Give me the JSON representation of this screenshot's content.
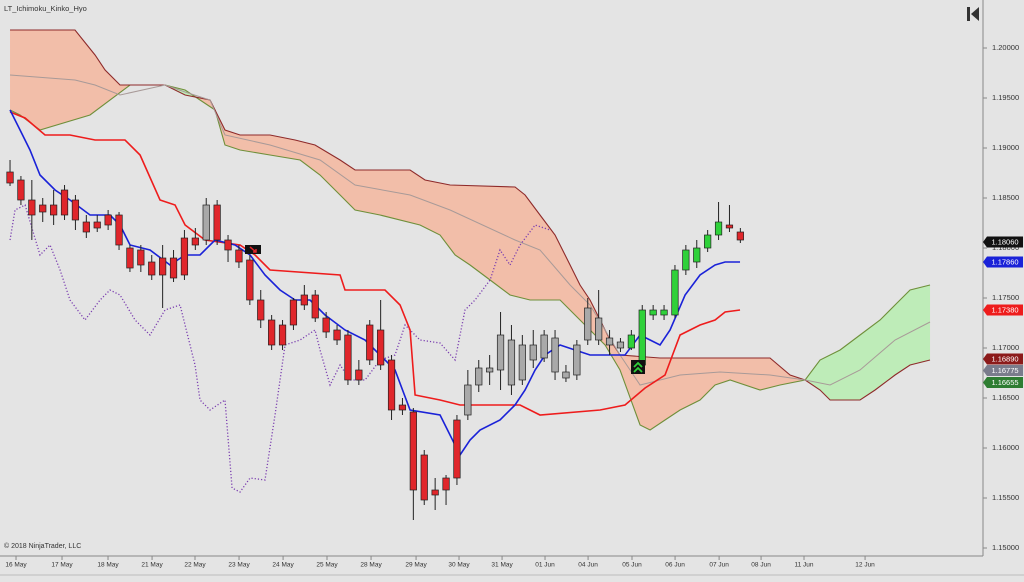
{
  "chart_data": {
    "type": "candlestick",
    "title": "LT_Ichimoku_Kinko_Hyo",
    "footnote": "© 2018 NinjaTrader, LLC",
    "xlim": [
      -0.92,
      89.26
    ],
    "ylim": [
      1.1492,
      1.2048
    ],
    "yticks": [
      {
        "value": 1.2,
        "label": "1.20000"
      },
      {
        "value": 1.195,
        "label": "1.19500"
      },
      {
        "value": 1.19,
        "label": "1.19000"
      },
      {
        "value": 1.185,
        "label": "1.18500"
      },
      {
        "value": 1.18,
        "label": "1.18000"
      },
      {
        "value": 1.175,
        "label": "1.17500"
      },
      {
        "value": 1.17,
        "label": "1.17000"
      },
      {
        "value": 1.165,
        "label": "1.16500"
      },
      {
        "value": 1.16,
        "label": "1.16000"
      },
      {
        "value": 1.155,
        "label": "1.15500"
      },
      {
        "value": 1.15,
        "label": "1.15000"
      }
    ],
    "xticks": [
      {
        "value": 0.55,
        "label": "16 May"
      },
      {
        "value": 4.77,
        "label": "17 May"
      },
      {
        "value": 8.99,
        "label": "18 May"
      },
      {
        "value": 13.03,
        "label": "21 May"
      },
      {
        "value": 16.97,
        "label": "22 May"
      },
      {
        "value": 21.01,
        "label": "23 May"
      },
      {
        "value": 25.05,
        "label": "24 May"
      },
      {
        "value": 29.08,
        "label": "25 May"
      },
      {
        "value": 33.12,
        "label": "28 May"
      },
      {
        "value": 37.25,
        "label": "29 May"
      },
      {
        "value": 41.19,
        "label": "30 May"
      },
      {
        "value": 45.14,
        "label": "31 May"
      },
      {
        "value": 49.08,
        "label": "01 Jun"
      },
      {
        "value": 53.03,
        "label": "04 Jun"
      },
      {
        "value": 57.06,
        "label": "05 Jun"
      },
      {
        "value": 61.01,
        "label": "06 Jun"
      },
      {
        "value": 65.05,
        "label": "07 Jun"
      },
      {
        "value": 68.9,
        "label": "08 Jun"
      },
      {
        "value": 72.84,
        "label": "11 Jun"
      },
      {
        "value": 78.44,
        "label": "12 Jun"
      }
    ],
    "candles": {
      "x": [
        0,
        1,
        2,
        3,
        4,
        5,
        6,
        7,
        8,
        9,
        10,
        11,
        12,
        13,
        14,
        15,
        16,
        17,
        18,
        19,
        20,
        21,
        22,
        23,
        24,
        25,
        26,
        27,
        28,
        29,
        30,
        31,
        32,
        33,
        34,
        35,
        36,
        37,
        38,
        39,
        40,
        41,
        42,
        43,
        44,
        45,
        46,
        47,
        48,
        49,
        50,
        51,
        52,
        53,
        54,
        55,
        56,
        57,
        58,
        59,
        60,
        61,
        62,
        63,
        64,
        65,
        66,
        67
      ],
      "open": [
        1.1876,
        1.1868,
        1.1848,
        1.1836,
        1.1843,
        1.1858,
        1.1848,
        1.1826,
        1.182,
        1.1833,
        1.1833,
        1.18,
        1.1798,
        1.1786,
        1.1773,
        1.179,
        1.1773,
        1.181,
        1.1808,
        1.1843,
        1.1808,
        1.1798,
        1.1788,
        1.1748,
        1.1728,
        1.1703,
        1.1723,
        1.1743,
        1.1753,
        1.173,
        1.1718,
        1.1713,
        1.1678,
        1.1688,
        1.1718,
        1.1688,
        1.1643,
        1.1636,
        1.1593,
        1.1553,
        1.1558,
        1.157,
        1.1633,
        1.1663,
        1.1676,
        1.1678,
        1.1708,
        1.1668,
        1.1703,
        1.169,
        1.171,
        1.1676,
        1.1673,
        1.1708,
        1.173,
        1.171,
        1.1706,
        1.17,
        1.1683,
        1.1738,
        1.1733,
        1.1733,
        1.1778,
        1.1786,
        1.18,
        1.1813,
        1.1823,
        1.1816
      ],
      "high": [
        1.1888,
        1.1872,
        1.1868,
        1.185,
        1.1858,
        1.1863,
        1.1853,
        1.1833,
        1.1833,
        1.1838,
        1.1836,
        1.1803,
        1.1803,
        1.1793,
        1.1803,
        1.1798,
        1.1818,
        1.182,
        1.185,
        1.1848,
        1.1813,
        1.1803,
        1.1793,
        1.1758,
        1.1733,
        1.1728,
        1.175,
        1.1763,
        1.1758,
        1.1736,
        1.1723,
        1.1718,
        1.1688,
        1.1728,
        1.1748,
        1.1693,
        1.165,
        1.164,
        1.1598,
        1.157,
        1.1573,
        1.1633,
        1.1678,
        1.1688,
        1.1693,
        1.1736,
        1.1723,
        1.1713,
        1.1718,
        1.1718,
        1.1718,
        1.1683,
        1.1708,
        1.175,
        1.1758,
        1.1718,
        1.171,
        1.1718,
        1.1743,
        1.1743,
        1.1743,
        1.1783,
        1.1803,
        1.1808,
        1.1818,
        1.1846,
        1.1843,
        1.182
      ],
      "low": [
        1.1862,
        1.1843,
        1.1808,
        1.1826,
        1.1823,
        1.1828,
        1.1818,
        1.181,
        1.1816,
        1.1818,
        1.1798,
        1.1776,
        1.1776,
        1.1768,
        1.174,
        1.1766,
        1.1768,
        1.1798,
        1.1803,
        1.1803,
        1.1786,
        1.178,
        1.1743,
        1.172,
        1.1698,
        1.1698,
        1.1718,
        1.1738,
        1.1726,
        1.171,
        1.1703,
        1.1663,
        1.1663,
        1.1683,
        1.1678,
        1.1628,
        1.1633,
        1.1528,
        1.1543,
        1.1538,
        1.1543,
        1.1563,
        1.1628,
        1.1656,
        1.1663,
        1.1658,
        1.1653,
        1.1663,
        1.168,
        1.1686,
        1.1668,
        1.1666,
        1.1668,
        1.1703,
        1.1703,
        1.1693,
        1.1696,
        1.1698,
        1.1678,
        1.1728,
        1.1728,
        1.173,
        1.1773,
        1.178,
        1.1796,
        1.1808,
        1.1816,
        1.1805
      ],
      "close": [
        1.1865,
        1.1848,
        1.1833,
        1.1843,
        1.1833,
        1.1833,
        1.1828,
        1.1816,
        1.1826,
        1.1823,
        1.1803,
        1.178,
        1.1783,
        1.1773,
        1.179,
        1.177,
        1.181,
        1.1803,
        1.1843,
        1.1808,
        1.1798,
        1.1786,
        1.1748,
        1.1728,
        1.1703,
        1.1723,
        1.1748,
        1.1753,
        1.173,
        1.1716,
        1.1708,
        1.1668,
        1.1668,
        1.1723,
        1.1683,
        1.1638,
        1.1638,
        1.1558,
        1.1548,
        1.1558,
        1.157,
        1.1628,
        1.1663,
        1.168,
        1.168,
        1.1713,
        1.1663,
        1.1703,
        1.1688,
        1.1713,
        1.1676,
        1.167,
        1.1703,
        1.174,
        1.1708,
        1.1703,
        1.17,
        1.1713,
        1.1738,
        1.1733,
        1.1738,
        1.1778,
        1.1798,
        1.18,
        1.1813,
        1.1826,
        1.182,
        1.1808
      ],
      "colors": [
        "#e0262b",
        "#e0262b",
        "#e0262b",
        "#e0262b",
        "#e0262b",
        "#e0262b",
        "#e0262b",
        "#e0262b",
        "#e0262b",
        "#e0262b",
        "#e0262b",
        "#e0262b",
        "#e0262b",
        "#e0262b",
        "#e0262b",
        "#e0262b",
        "#e0262b",
        "#e0262b",
        "#a9a9a9",
        "#e0262b",
        "#e0262b",
        "#e0262b",
        "#e0262b",
        "#e0262b",
        "#e0262b",
        "#e0262b",
        "#e0262b",
        "#e0262b",
        "#e0262b",
        "#e0262b",
        "#e0262b",
        "#e0262b",
        "#e0262b",
        "#e0262b",
        "#e0262b",
        "#e0262b",
        "#e0262b",
        "#e0262b",
        "#e0262b",
        "#e0262b",
        "#e0262b",
        "#e0262b",
        "#a9a9a9",
        "#a9a9a9",
        "#a9a9a9",
        "#a9a9a9",
        "#a9a9a9",
        "#a9a9a9",
        "#a9a9a9",
        "#a9a9a9",
        "#a9a9a9",
        "#a9a9a9",
        "#a9a9a9",
        "#a9a9a9",
        "#a9a9a9",
        "#a9a9a9",
        "#a9a9a9",
        "#2fd13a",
        "#2fd13a",
        "#2fd13a",
        "#2fd13a",
        "#2fd13a",
        "#2fd13a",
        "#2fd13a",
        "#2fd13a",
        "#2fd13a",
        "#e0262b",
        "#e0262b"
      ]
    },
    "cloud": {
      "bearish_color": "#f3b9a2",
      "bullish_color": "#b9ecb3",
      "a": {
        "color": "#6f8f3a",
        "x": [
          0,
          0.92,
          2.75,
          7.34,
          11.01,
          14.22,
          16.06,
          17.43,
          18.81,
          19.72,
          21.1,
          23.85,
          26.61,
          28.44,
          30.28,
          31.65,
          33.94,
          37.61,
          39.45,
          40.83,
          42.2,
          44.04,
          45.87,
          47.71,
          50.46,
          51.83,
          53.21,
          54.59,
          55.96,
          57.8,
          58.72,
          60.09,
          61.47,
          63.3,
          64.68,
          66.06,
          68.81,
          70.64,
          72.94,
          74.31,
          76.15,
          77.98,
          79.82,
          81.19,
          82.57,
          84.4
        ],
        "values": [
          1.1938,
          1.1933,
          1.1918,
          1.1933,
          1.1963,
          1.1963,
          1.1958,
          1.1948,
          1.1938,
          1.1903,
          1.1898,
          1.1893,
          1.1888,
          1.1873,
          1.1853,
          1.1838,
          1.1833,
          1.1823,
          1.1813,
          1.1793,
          1.1783,
          1.1768,
          1.1753,
          1.1748,
          1.1748,
          1.1733,
          1.1718,
          1.1703,
          1.1678,
          1.1623,
          1.1618,
          1.1628,
          1.1638,
          1.1648,
          1.1663,
          1.1668,
          1.1658,
          1.1663,
          1.1668,
          1.1688,
          1.1698,
          1.1713,
          1.1728,
          1.1743,
          1.1758,
          1.1763
        ]
      },
      "b": {
        "color": "#8e2a2a",
        "x": [
          0,
          5.96,
          7.8,
          8.72,
          10.09,
          14.22,
          16.06,
          18.35,
          19.72,
          21.1,
          23.85,
          26.15,
          27.98,
          30.28,
          31.65,
          36.7,
          38.07,
          40.37,
          46.33,
          47.25,
          48.62,
          50,
          51.38,
          52.29,
          53.21,
          55.05,
          55.96,
          59.63,
          69.72,
          71.56,
          72.94,
          74.31,
          75.23,
          77.98,
          79.36,
          81.19,
          82.57,
          84.4
        ],
        "values": [
          1.2018,
          1.2018,
          1.1993,
          1.1978,
          1.1963,
          1.1963,
          1.1953,
          1.1948,
          1.1918,
          1.1913,
          1.1913,
          1.1908,
          1.1903,
          1.1888,
          1.1878,
          1.1878,
          1.1868,
          1.1863,
          1.1861,
          1.1853,
          1.1833,
          1.1813,
          1.1783,
          1.1763,
          1.1748,
          1.1708,
          1.1693,
          1.169,
          1.169,
          1.1673,
          1.1668,
          1.1658,
          1.1648,
          1.1648,
          1.1658,
          1.1673,
          1.1683,
          1.1688
        ]
      }
    },
    "lines": [
      {
        "color": "#a89a98",
        "width": 1,
        "dash": false,
        "x": [
          0,
          5.96,
          7.8,
          10.09,
          14.22,
          16.06,
          18.35,
          19.72,
          23.85,
          28.44,
          31.65,
          36.7,
          40.37,
          46.33,
          48.62,
          51.38,
          53.21,
          55.96,
          57.8,
          61.47,
          65.14,
          69.72,
          72.94,
          75.23,
          77.98,
          81.19,
          84.4
        ],
        "values": [
          1.1973,
          1.1968,
          1.1963,
          1.1953,
          1.1963,
          1.1956,
          1.1948,
          1.1913,
          1.1903,
          1.1888,
          1.1863,
          1.1853,
          1.1838,
          1.1808,
          1.1798,
          1.1763,
          1.1743,
          1.1693,
          1.1663,
          1.1673,
          1.1676,
          1.1673,
          1.1668,
          1.1663,
          1.1678,
          1.1708,
          1.1726
        ]
      },
      {
        "color": "#7b3fb0",
        "width": 1.3,
        "dash": true,
        "x": [
          0,
          0.46,
          1.38,
          2.75,
          3.67,
          4.59,
          5.5,
          6.88,
          8.26,
          9.17,
          10.09,
          11.47,
          12.84,
          14.22,
          15.6,
          16.97,
          17.43,
          18.35,
          19.72,
          20.37,
          21.1,
          22.02,
          23.39,
          24.31,
          25.23,
          26.61,
          27.98,
          28.44,
          29.36,
          30.28,
          31.19,
          32.57,
          33.94,
          35.32,
          36.24,
          37.61,
          39.45,
          40.83,
          41.74,
          42.66,
          44.04,
          44.95,
          45.87,
          46.79,
          48.17,
          49.54
        ],
        "values": [
          1.1808,
          1.1838,
          1.1843,
          1.1793,
          1.1803,
          1.1778,
          1.1748,
          1.1728,
          1.1748,
          1.1758,
          1.1753,
          1.1728,
          1.1713,
          1.1738,
          1.1743,
          1.1683,
          1.1648,
          1.1638,
          1.1648,
          1.156,
          1.1556,
          1.157,
          1.1568,
          1.1633,
          1.1703,
          1.1708,
          1.1718,
          1.1698,
          1.1663,
          1.1683,
          1.1668,
          1.1668,
          1.1688,
          1.1693,
          1.1723,
          1.1708,
          1.1705,
          1.1688,
          1.1738,
          1.1748,
          1.1768,
          1.1798,
          1.1783,
          1.1803,
          1.1823,
          1.1818
        ]
      },
      {
        "color": "#ee1c1c",
        "width": 1.6,
        "dash": false,
        "x": [
          0,
          1.38,
          3.21,
          5.5,
          7.8,
          10.55,
          11.93,
          13.76,
          15.14,
          16.06,
          17.89,
          21.1,
          22.48,
          23.85,
          30.28,
          30.73,
          34.4,
          35.78,
          36.7,
          37.16,
          39.45,
          41.28,
          46.79,
          48.62,
          54.13,
          56.42,
          58.26,
          60.09,
          61.47,
          63.3,
          64.68,
          65.6,
          66.97
        ],
        "values": [
          1.1936,
          1.193,
          1.1913,
          1.1913,
          1.1908,
          1.1908,
          1.1893,
          1.1848,
          1.1843,
          1.1823,
          1.1808,
          1.1803,
          1.1793,
          1.1778,
          1.1773,
          1.1758,
          1.1758,
          1.1743,
          1.1718,
          1.1653,
          1.1648,
          1.1643,
          1.1643,
          1.1633,
          1.1638,
          1.1643,
          1.166,
          1.1673,
          1.1713,
          1.1723,
          1.1728,
          1.1736,
          1.1738
        ]
      },
      {
        "color": "#1a22d8",
        "width": 1.6,
        "dash": false,
        "x": [
          0,
          0.92,
          1.83,
          2.75,
          4.13,
          5.5,
          7.34,
          9.17,
          10.09,
          11.01,
          12.84,
          14.68,
          16.06,
          17.43,
          18.81,
          20.64,
          22.02,
          23.39,
          24.77,
          26.15,
          27.52,
          28.9,
          30.73,
          32.57,
          33.94,
          35.32,
          36.7,
          39.45,
          41.28,
          42.2,
          43.12,
          44.95,
          46.33,
          47.25,
          48.17,
          49.08,
          50.46,
          51.83,
          53.21,
          54.59,
          56.42,
          57.8,
          58.72,
          59.63,
          60.55,
          61.93,
          63.3,
          64.68,
          65.6,
          66.97
        ],
        "values": [
          1.1938,
          1.1918,
          1.1898,
          1.1873,
          1.1858,
          1.1848,
          1.1833,
          1.1833,
          1.1823,
          1.1803,
          1.1798,
          1.1783,
          1.1793,
          1.1793,
          1.1808,
          1.1803,
          1.1793,
          1.1773,
          1.1758,
          1.1748,
          1.1748,
          1.1733,
          1.1718,
          1.1708,
          1.1693,
          1.1678,
          1.1638,
          1.1633,
          1.1593,
          1.1608,
          1.1618,
          1.1628,
          1.1643,
          1.1658,
          1.1678,
          1.1693,
          1.1703,
          1.1698,
          1.1693,
          1.1693,
          1.1693,
          1.1713,
          1.1708,
          1.1703,
          1.1718,
          1.1753,
          1.1773,
          1.1783,
          1.1786,
          1.1786
        ]
      }
    ],
    "price_markers": [
      {
        "value": 1.1806,
        "label": "1.18060",
        "color": "#111111"
      },
      {
        "value": 1.1786,
        "label": "1.17860",
        "color": "#1a22d8"
      },
      {
        "value": 1.1738,
        "label": "1.17380",
        "color": "#ee1c1c"
      },
      {
        "value": 1.1689,
        "label": "1.16890",
        "color": "#8b1a1a"
      },
      {
        "value": 1.16775,
        "label": "1.16775",
        "color": "#7a7c8c"
      },
      {
        "value": 1.16655,
        "label": "1.16655",
        "color": "#2e7d32"
      }
    ]
  }
}
